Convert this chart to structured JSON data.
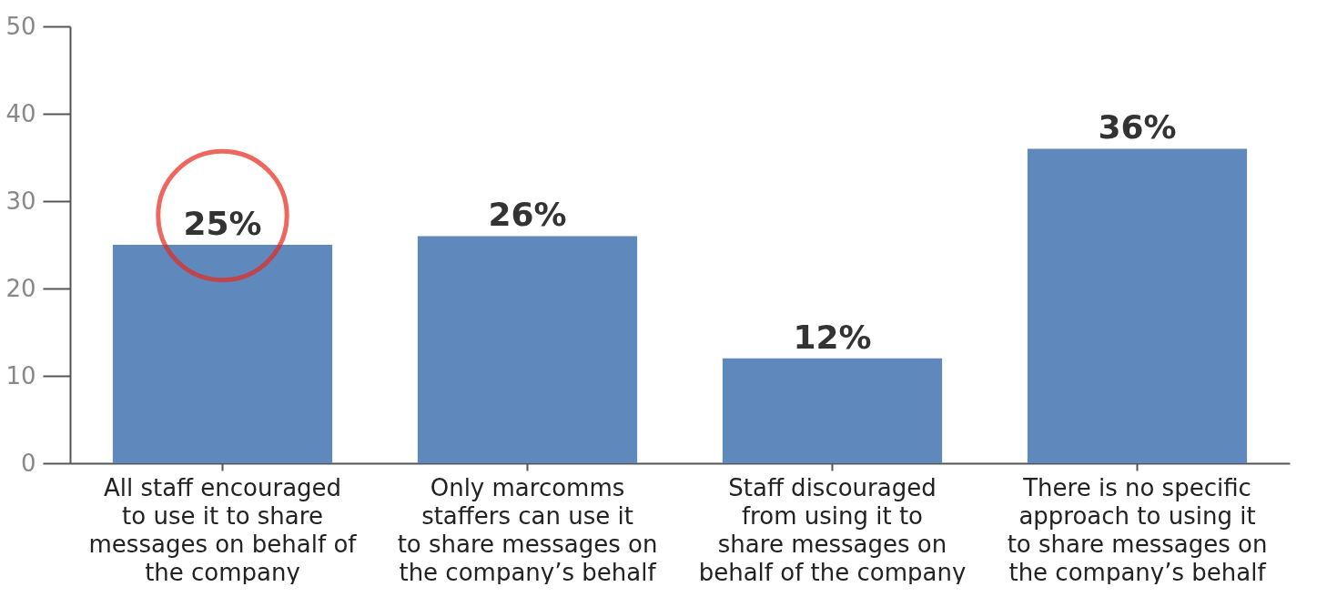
{
  "chart_data": {
    "type": "bar",
    "categories": [
      "All staff encouraged to use it to share messages on behalf of the company",
      "Only marcomms staffers can use it to share messages on the company’s behalf",
      "Staff discouraged from using it to share messages on behalf of the company",
      "There is no specific approach to using it to share messages on the company’s behalf"
    ],
    "values": [
      25,
      26,
      12,
      36
    ],
    "value_labels": [
      "25%",
      "26%",
      "12%",
      "36%"
    ],
    "color": "#5f88bd",
    "ylim": [
      0,
      50
    ],
    "yticks": [
      0,
      10,
      20,
      30,
      40,
      50
    ],
    "grid": false
  }
}
